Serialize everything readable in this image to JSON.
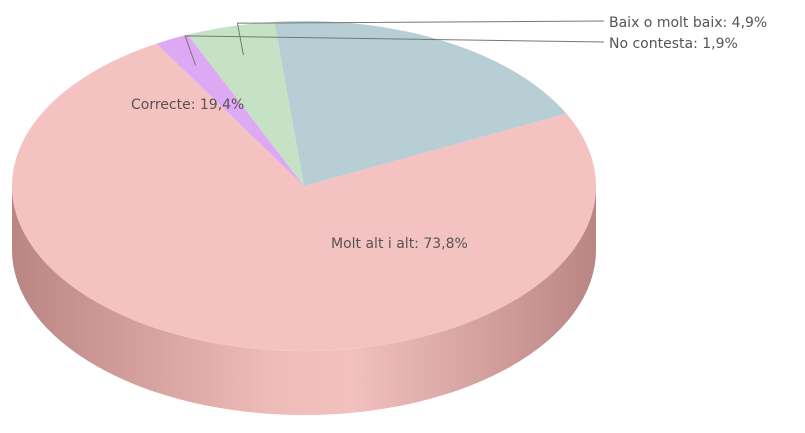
{
  "chart_data": {
    "type": "pie",
    "style": "3d",
    "title": "",
    "slices": [
      {
        "label": "Molt alt i alt",
        "value": 73.8,
        "text": "Molt alt i alt: 73,8%",
        "color": "#f4c2c0",
        "side_color": "#d09c9a"
      },
      {
        "label": "Correcte",
        "value": 19.4,
        "text": "Correcte: 19,4%",
        "color": "#b7ced5",
        "side_color": "#94aab0"
      },
      {
        "label": "Baix o molt baix",
        "value": 4.9,
        "text": "Baix o molt baix: 4,9%",
        "color": "#c6e2c5",
        "side_color": "#a3bba2"
      },
      {
        "label": "No contesta",
        "value": 1.9,
        "text": "No contesta: 1,9%",
        "color": "#dea9f4",
        "side_color": "#b88ace"
      }
    ]
  }
}
